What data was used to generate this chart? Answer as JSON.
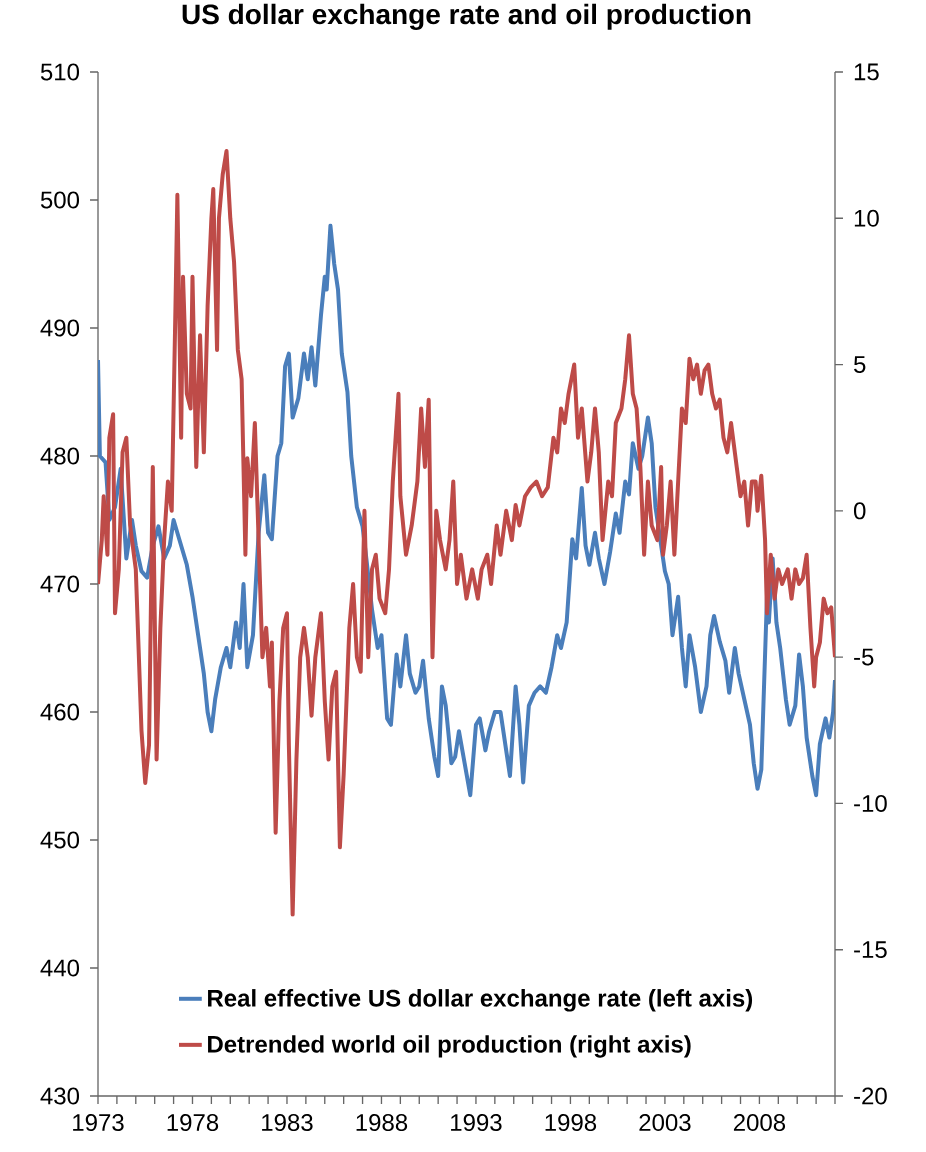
{
  "chart_data": {
    "type": "line",
    "title": "US dollar exchange rate and oil production",
    "xlim": [
      1973,
      2012
    ],
    "xticks": [
      1973,
      {
        "value": 1974,
        "label": null
      },
      {
        "value": 1975,
        "label": null
      },
      {
        "value": 1976,
        "label": null
      },
      {
        "value": 1977,
        "label": null
      },
      1978,
      {
        "value": 1979,
        "label": null
      },
      {
        "value": 1980,
        "label": null
      },
      {
        "value": 1981,
        "label": null
      },
      {
        "value": 1982,
        "label": null
      },
      1983,
      {
        "value": 1984,
        "label": null
      },
      {
        "value": 1985,
        "label": null
      },
      {
        "value": 1986,
        "label": null
      },
      {
        "value": 1987,
        "label": null
      },
      1988,
      {
        "value": 1989,
        "label": null
      },
      {
        "value": 1990,
        "label": null
      },
      {
        "value": 1991,
        "label": null
      },
      {
        "value": 1992,
        "label": null
      },
      1993,
      {
        "value": 1994,
        "label": null
      },
      {
        "value": 1995,
        "label": null
      },
      {
        "value": 1996,
        "label": null
      },
      {
        "value": 1997,
        "label": null
      },
      1998,
      {
        "value": 1999,
        "label": null
      },
      {
        "value": 2000,
        "label": null
      },
      {
        "value": 2001,
        "label": null
      },
      {
        "value": 2002,
        "label": null
      },
      2003,
      {
        "value": 2004,
        "label": null
      },
      {
        "value": 2005,
        "label": null
      },
      {
        "value": 2006,
        "label": null
      },
      {
        "value": 2007,
        "label": null
      },
      2008,
      {
        "value": 2009,
        "label": null
      },
      {
        "value": 2010,
        "label": null
      },
      {
        "value": 2011,
        "label": null
      },
      {
        "value": 2012,
        "label": null
      }
    ],
    "ylim": [
      430,
      510
    ],
    "yticks": [
      430,
      440,
      450,
      460,
      470,
      480,
      490,
      500,
      510
    ],
    "y2lim": [
      -20,
      15
    ],
    "y2ticks": [
      -20,
      -15,
      -10,
      -5,
      0,
      5,
      10,
      15
    ],
    "legend": "bottom",
    "series": [
      {
        "name": "Real effective US dollar exchange rate (left axis)",
        "color": "#4a7ebb",
        "x": [
          1973.0,
          1973.1,
          1973.4,
          1973.6,
          1973.9,
          1974.2,
          1974.5,
          1974.8,
          1975.0,
          1975.3,
          1975.6,
          1975.9,
          1976.2,
          1976.5,
          1976.8,
          1977.0,
          1977.3,
          1977.7,
          1978.0,
          1978.3,
          1978.6,
          1978.8,
          1979.0,
          1979.2,
          1979.5,
          1979.8,
          1980.0,
          1980.3,
          1980.5,
          1980.7,
          1980.9,
          1981.2,
          1981.5,
          1981.8,
          1982.0,
          1982.2,
          1982.5,
          1982.7,
          1982.9,
          1983.1,
          1983.3,
          1983.6,
          1983.9,
          1984.1,
          1984.3,
          1984.5,
          1984.8,
          1985.0,
          1985.1,
          1985.3,
          1985.5,
          1985.7,
          1985.9,
          1986.2,
          1986.4,
          1986.7,
          1987.0,
          1987.2,
          1987.5,
          1987.8,
          1988.0,
          1988.3,
          1988.5,
          1988.8,
          1989.0,
          1989.3,
          1989.5,
          1989.8,
          1990.0,
          1990.2,
          1990.5,
          1990.8,
          1991.0,
          1991.2,
          1991.4,
          1991.7,
          1991.9,
          1992.1,
          1992.4,
          1992.7,
          1993.0,
          1993.2,
          1993.5,
          1993.7,
          1994.0,
          1994.3,
          1994.6,
          1994.8,
          1995.1,
          1995.3,
          1995.5,
          1995.8,
          1996.1,
          1996.4,
          1996.7,
          1997.0,
          1997.3,
          1997.5,
          1997.8,
          1998.1,
          1998.3,
          1998.6,
          1998.8,
          1999.0,
          1999.3,
          1999.5,
          1999.8,
          2000.1,
          2000.4,
          2000.6,
          2000.9,
          2001.1,
          2001.3,
          2001.6,
          2001.8,
          2002.1,
          2002.3,
          2002.5,
          2002.7,
          2003.0,
          2003.2,
          2003.4,
          2003.7,
          2003.9,
          2004.1,
          2004.3,
          2004.6,
          2004.9,
          2005.2,
          2005.4,
          2005.6,
          2005.9,
          2006.2,
          2006.4,
          2006.7,
          2006.9,
          2007.2,
          2007.5,
          2007.7,
          2007.9,
          2008.1,
          2008.4,
          2008.5,
          2008.7,
          2008.9,
          2009.1,
          2009.4,
          2009.6,
          2009.9,
          2010.1,
          2010.3,
          2010.5,
          2010.8,
          2011.0,
          2011.2,
          2011.5,
          2011.7,
          2011.9,
          2012.0
        ],
        "values": [
          487.5,
          480,
          479.5,
          475,
          476,
          479,
          472,
          475,
          473,
          471,
          470.5,
          473,
          474.5,
          472,
          473,
          475,
          473.5,
          471.5,
          469,
          466,
          463,
          460,
          458.5,
          461,
          463.5,
          465,
          463.5,
          467,
          465,
          470,
          463.5,
          466,
          474,
          478.5,
          474,
          473.5,
          480,
          481,
          487,
          488,
          483,
          484.5,
          488,
          486,
          488.5,
          485.5,
          491,
          494,
          493,
          498,
          495,
          493,
          488,
          485,
          480,
          476,
          474.5,
          472,
          468,
          465,
          466,
          459.5,
          459,
          464.5,
          462,
          466,
          463,
          461.5,
          462,
          464,
          459.5,
          456.5,
          455,
          462,
          460.5,
          456,
          456.5,
          458.5,
          456,
          453.5,
          459,
          459.5,
          457,
          458.5,
          460,
          460,
          457,
          455,
          462,
          459,
          454.5,
          460.5,
          461.5,
          462,
          461.5,
          463.5,
          466,
          465,
          467,
          473.5,
          472,
          477.5,
          473,
          471.5,
          474,
          472,
          470,
          472.5,
          475.5,
          474,
          478,
          477,
          481,
          479,
          480,
          483,
          481,
          476,
          474,
          471,
          470,
          466,
          469,
          465,
          462,
          466,
          463.5,
          460,
          462,
          466,
          467.5,
          465.5,
          464,
          461.5,
          465,
          463,
          461,
          459,
          456,
          454,
          455.5,
          469,
          467,
          472,
          467,
          465,
          461,
          459,
          460.5,
          464.5,
          462,
          458,
          455,
          453.5,
          457.5,
          459.5,
          458,
          460,
          462.5
        ]
      },
      {
        "name": "Detrended world oil production (right axis)",
        "color": "#be4b48",
        "axis": "y2",
        "x": [
          1973.0,
          1973.2,
          1973.3,
          1973.5,
          1973.6,
          1973.8,
          1973.9,
          1974.1,
          1974.3,
          1974.5,
          1974.7,
          1975.0,
          1975.3,
          1975.5,
          1975.7,
          1975.9,
          1976.1,
          1976.3,
          1976.5,
          1976.7,
          1976.9,
          1977.1,
          1977.2,
          1977.4,
          1977.5,
          1977.7,
          1977.9,
          1978.0,
          1978.2,
          1978.4,
          1978.6,
          1978.8,
          1979.0,
          1979.1,
          1979.3,
          1979.4,
          1979.6,
          1979.8,
          1980.0,
          1980.2,
          1980.4,
          1980.6,
          1980.8,
          1980.9,
          1981.1,
          1981.3,
          1981.5,
          1981.7,
          1981.9,
          1982.1,
          1982.2,
          1982.4,
          1982.6,
          1982.8,
          1983.0,
          1983.1,
          1983.3,
          1983.5,
          1983.7,
          1983.9,
          1984.1,
          1984.3,
          1984.5,
          1984.8,
          1985.0,
          1985.2,
          1985.4,
          1985.6,
          1985.8,
          1986.0,
          1986.3,
          1986.5,
          1986.7,
          1986.9,
          1987.1,
          1987.3,
          1987.5,
          1987.7,
          1987.9,
          1988.2,
          1988.4,
          1988.6,
          1988.9,
          1989.0,
          1989.3,
          1989.6,
          1989.9,
          1990.1,
          1990.3,
          1990.5,
          1990.7,
          1990.9,
          1991.1,
          1991.4,
          1991.6,
          1991.8,
          1992.0,
          1992.2,
          1992.5,
          1992.8,
          1993.1,
          1993.3,
          1993.6,
          1993.8,
          1994.1,
          1994.3,
          1994.6,
          1994.9,
          1995.1,
          1995.3,
          1995.6,
          1995.9,
          1996.2,
          1996.5,
          1996.8,
          1997.1,
          1997.3,
          1997.5,
          1997.7,
          1997.9,
          1998.2,
          1998.4,
          1998.6,
          1998.9,
          1999.1,
          1999.3,
          1999.5,
          1999.7,
          2000.0,
          2000.2,
          2000.4,
          2000.7,
          2000.9,
          2001.1,
          2001.3,
          2001.5,
          2001.7,
          2001.9,
          2002.1,
          2002.3,
          2002.6,
          2002.8,
          2002.9,
          2003.1,
          2003.3,
          2003.5,
          2003.7,
          2003.9,
          2004.1,
          2004.3,
          2004.5,
          2004.7,
          2004.9,
          2005.1,
          2005.3,
          2005.5,
          2005.7,
          2005.9,
          2006.1,
          2006.3,
          2006.5,
          2006.8,
          2007.0,
          2007.2,
          2007.4,
          2007.6,
          2007.8,
          2007.9,
          2008.1,
          2008.3,
          2008.4,
          2008.6,
          2008.8,
          2009.0,
          2009.2,
          2009.5,
          2009.7,
          2009.9,
          2010.1,
          2010.3,
          2010.5,
          2010.7,
          2010.9,
          2011.0,
          2011.2,
          2011.4,
          2011.6,
          2011.8,
          2012.0
        ],
        "values": [
          -2.5,
          -1,
          0.5,
          -1.5,
          2.5,
          3.3,
          -3.5,
          -2,
          2,
          2.5,
          -0.5,
          -2,
          -7.5,
          -9.3,
          -8,
          1.5,
          -8.5,
          -4,
          -1,
          1,
          0,
          7,
          10.8,
          2.5,
          8,
          4,
          3.5,
          8,
          1.5,
          6,
          2,
          7,
          10,
          11,
          5.5,
          10,
          11.5,
          12.3,
          10,
          8.5,
          5.5,
          4.5,
          -1.5,
          1.8,
          0.5,
          3,
          -1,
          -5,
          -4,
          -6,
          -4.5,
          -11,
          -6.5,
          -4,
          -3.5,
          -8,
          -13.8,
          -8.5,
          -5,
          -4,
          -5,
          -7,
          -5,
          -3.5,
          -6.5,
          -8.5,
          -6,
          -5.5,
          -11.5,
          -9,
          -4,
          -2.5,
          -5,
          -5.5,
          0,
          -5,
          -2,
          -1.5,
          -3,
          -3.5,
          -2,
          1,
          4,
          0.5,
          -1.5,
          -0.5,
          1,
          3.5,
          1.5,
          3.8,
          -5,
          0,
          -1,
          -2,
          -1,
          1,
          -2.5,
          -1.5,
          -3,
          -2,
          -3,
          -2,
          -1.5,
          -2.5,
          -0.5,
          -1.5,
          0,
          -1,
          0.2,
          -0.5,
          0.5,
          0.8,
          1,
          0.5,
          0.8,
          2.5,
          2,
          3.5,
          3,
          4,
          5,
          2.5,
          3.5,
          1,
          2,
          3.5,
          2,
          -1,
          1,
          0.5,
          3,
          3.5,
          4.5,
          6,
          4,
          3.5,
          1.5,
          -1.5,
          1,
          -0.5,
          -1,
          1.5,
          -1.5,
          -0.5,
          1,
          -1.5,
          1,
          3.5,
          3,
          5.2,
          4.5,
          5,
          4,
          4.8,
          5,
          4,
          3.5,
          3.8,
          2.5,
          2,
          3,
          1.5,
          0.5,
          1,
          -0.5,
          1,
          1,
          0,
          1.2,
          -1,
          -3.5,
          -1.5,
          -3,
          -2,
          -2.5,
          -2,
          -3,
          -2,
          -2.5,
          -2.3,
          -1.5,
          -4,
          -6,
          -5,
          -4.5,
          -3,
          -3.5,
          -3.3,
          -5
        ]
      }
    ]
  }
}
